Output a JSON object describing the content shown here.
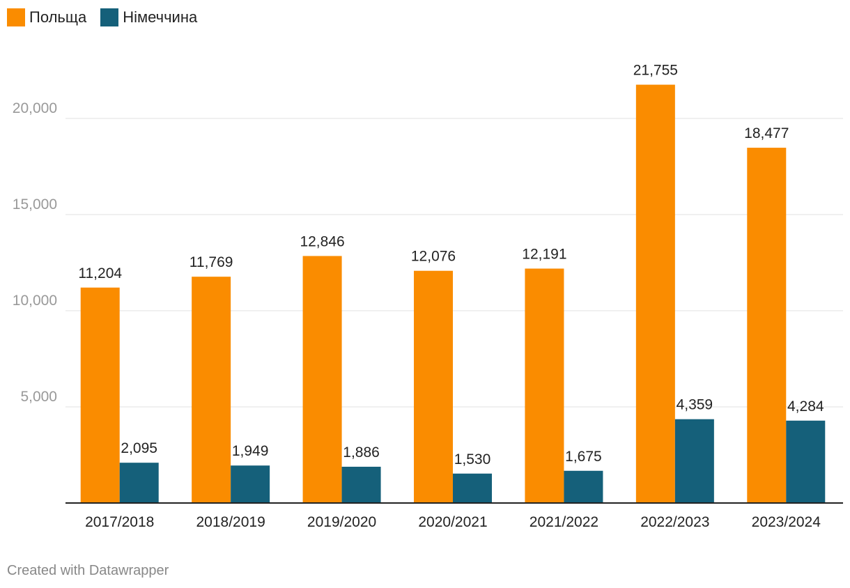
{
  "chart_data": {
    "type": "bar",
    "categories": [
      "2017/2018",
      "2018/2019",
      "2019/2020",
      "2020/2021",
      "2021/2022",
      "2022/2023",
      "2023/2024"
    ],
    "series": [
      {
        "name": "Польща",
        "color": "#FA8C00",
        "values": [
          11204,
          11769,
          12846,
          12076,
          12191,
          21755,
          18477
        ],
        "labels": [
          "11,204",
          "11,769",
          "12,846",
          "12,076",
          "12,191",
          "21,755",
          "18,477"
        ]
      },
      {
        "name": "Німеччина",
        "color": "#15607A",
        "values": [
          2095,
          1949,
          1886,
          1530,
          1675,
          4359,
          4284
        ],
        "labels": [
          "2,095",
          "1,949",
          "1,886",
          "1,530",
          "1,675",
          "4,359",
          "4,284"
        ]
      }
    ],
    "yticks": [
      5000,
      10000,
      15000,
      20000
    ],
    "ytick_labels": [
      "5,000",
      "10,000",
      "15,000",
      "20,000"
    ],
    "ylim": [
      0,
      22000
    ],
    "grid": true,
    "legend_position": "top-left"
  },
  "footer": {
    "credit": "Created with Datawrapper"
  }
}
